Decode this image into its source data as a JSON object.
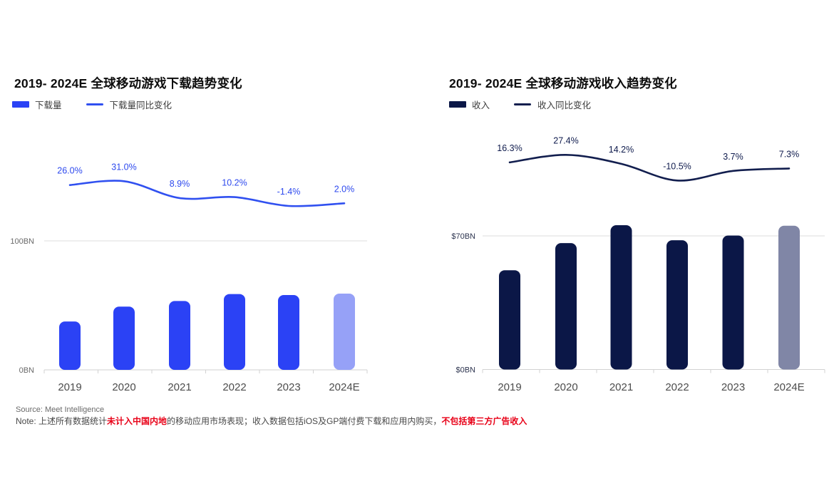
{
  "footer": {
    "source": "Source: Meet Intelligence",
    "note_prefix": "Note: 上述所有数据统计",
    "note_red1": "未计入中国内地",
    "note_mid": "的移动应用市场表现；收入数据包括iOS及GP端付费下载和应用内购买，",
    "note_red2": "不包括第三方广告收入"
  },
  "chart_data": [
    {
      "type": "bar+line",
      "title": "2019- 2024E 全球移动游戏下载趋势变化",
      "categories": [
        "2019",
        "2020",
        "2021",
        "2022",
        "2023",
        "2024E"
      ],
      "bar_series": {
        "name": "下载量",
        "unit": "BN",
        "values": [
          37.5,
          49,
          53.4,
          58.8,
          58,
          59.1
        ],
        "estimate_index": 5
      },
      "line_series": {
        "name": "下载量同比变化",
        "values_pct": [
          26.0,
          31.0,
          8.9,
          10.2,
          -1.4,
          2.0
        ],
        "labels": [
          "26.0%",
          "31.0%",
          "8.9%",
          "10.2%",
          "-1.4%",
          "2.0%"
        ]
      },
      "y_axis": {
        "grid_label": "100BN",
        "grid_value": 100,
        "base_label": "0BN",
        "min": 0
      },
      "colors": {
        "bar": "#2b42f5",
        "bar_estimate": "#96a1f7",
        "line": "#3050f0",
        "pct_label": "#2d49ee"
      },
      "legend_position": "top-left",
      "grid": "single-horizontal-gridline"
    },
    {
      "type": "bar+line",
      "title": "2019- 2024E 全球移动游戏收入趋势变化",
      "categories": [
        "2019",
        "2020",
        "2021",
        "2022",
        "2023",
        "2024E"
      ],
      "bar_series": {
        "name": "收入",
        "unit": "$BN",
        "values": [
          52,
          66.2,
          75.6,
          67.7,
          70.2,
          75.3
        ],
        "estimate_index": 5
      },
      "line_series": {
        "name": "收入同比变化",
        "values_pct": [
          16.3,
          27.4,
          14.2,
          -10.5,
          3.7,
          7.3
        ],
        "labels": [
          "16.3%",
          "27.4%",
          "14.2%",
          "-10.5%",
          "3.7%",
          "7.3%"
        ]
      },
      "y_axis": {
        "grid_label": "$70BN",
        "grid_value": 70,
        "base_label": "$0BN",
        "min": 0
      },
      "colors": {
        "bar": "#0b1747",
        "bar_estimate": "#8086a6",
        "line": "#121e4e",
        "pct_label": "#0f1b4d"
      },
      "legend_position": "top-left",
      "grid": "single-horizontal-gridline"
    }
  ]
}
